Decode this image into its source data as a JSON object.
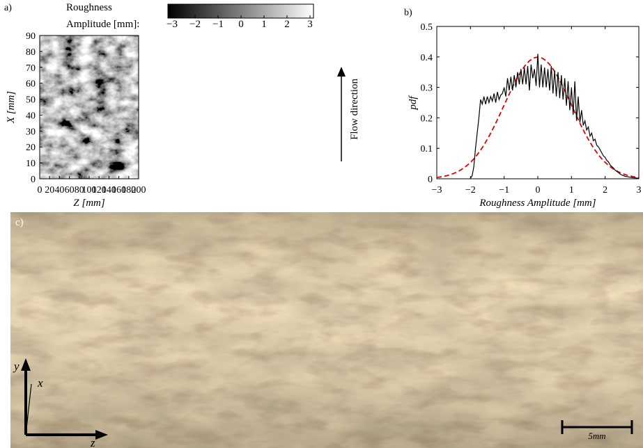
{
  "chart_data": [
    {
      "panel": "a)",
      "type": "heatmap",
      "colorbar": {
        "label_line1": "Roughness",
        "label_line2": "Amplitude [mm]:",
        "ticks": [
          "−3",
          "−2",
          "−1",
          "0",
          "1",
          "2",
          "3"
        ],
        "range": [
          -3,
          3
        ],
        "colors": [
          "#000000",
          "#ffffff"
        ]
      },
      "xlabel": "Z [mm]",
      "ylabel": "X [mm]",
      "xlim": [
        0,
        200
      ],
      "ylim": [
        0,
        90
      ],
      "xticks": [
        "0",
        "20",
        "40",
        "60",
        "80",
        "100",
        "120",
        "140",
        "160",
        "180",
        "200"
      ],
      "yticks": [
        "0",
        "10",
        "20",
        "30",
        "40",
        "50",
        "60",
        "70",
        "80",
        "90"
      ],
      "annotation": "Flow direction"
    },
    {
      "panel": "b)",
      "type": "line",
      "xlabel": "Roughness Amplitude [mm]",
      "ylabel": "pdf",
      "xlim": [
        -3,
        3
      ],
      "ylim": [
        0,
        0.5
      ],
      "xticks": [
        "−3",
        "−2",
        "−1",
        "0",
        "1",
        "2",
        "3"
      ],
      "yticks": [
        "0",
        "0.1",
        "0.2",
        "0.3",
        "0.4",
        "0.5"
      ],
      "series": [
        {
          "style": "solid",
          "color": "#000000",
          "x": [
            -2.0,
            -1.95,
            -1.9,
            -1.85,
            -1.8,
            -1.75,
            -1.7,
            -1.65,
            -1.6,
            -1.55,
            -1.5,
            -1.45,
            -1.4,
            -1.35,
            -1.3,
            -1.25,
            -1.2,
            -1.15,
            -1.1,
            -1.05,
            -1.0,
            -0.95,
            -0.9,
            -0.85,
            -0.8,
            -0.75,
            -0.7,
            -0.65,
            -0.6,
            -0.55,
            -0.5,
            -0.45,
            -0.4,
            -0.35,
            -0.3,
            -0.25,
            -0.2,
            -0.15,
            -0.1,
            -0.05,
            0.0,
            0.05,
            0.1,
            0.15,
            0.2,
            0.25,
            0.3,
            0.35,
            0.4,
            0.45,
            0.5,
            0.55,
            0.6,
            0.65,
            0.7,
            0.75,
            0.8,
            0.85,
            0.9,
            0.95,
            1.0,
            1.05,
            1.1,
            1.15,
            1.2,
            1.25,
            1.3,
            1.35,
            1.4,
            1.45,
            1.5,
            1.55,
            1.6,
            1.65,
            1.7,
            1.75,
            1.8,
            1.85,
            1.9,
            1.95,
            2.0,
            2.05,
            2.1,
            2.15,
            2.2,
            2.25,
            2.3,
            2.35,
            2.4,
            2.45,
            2.5,
            2.55,
            2.6,
            2.65,
            2.7,
            2.75,
            2.8,
            2.85,
            2.9,
            2.95,
            3.0
          ],
          "y": [
            0.002,
            0.01,
            0.04,
            0.1,
            0.15,
            0.2,
            0.26,
            0.245,
            0.27,
            0.245,
            0.27,
            0.25,
            0.27,
            0.255,
            0.28,
            0.25,
            0.285,
            0.26,
            0.275,
            0.28,
            0.3,
            0.27,
            0.33,
            0.29,
            0.335,
            0.29,
            0.34,
            0.3,
            0.35,
            0.31,
            0.36,
            0.31,
            0.365,
            0.31,
            0.37,
            0.29,
            0.375,
            0.33,
            0.36,
            0.305,
            0.41,
            0.3,
            0.375,
            0.3,
            0.365,
            0.3,
            0.36,
            0.29,
            0.37,
            0.28,
            0.355,
            0.27,
            0.35,
            0.265,
            0.34,
            0.26,
            0.33,
            0.24,
            0.32,
            0.225,
            0.3,
            0.21,
            0.32,
            0.19,
            0.27,
            0.185,
            0.225,
            0.175,
            0.19,
            0.16,
            0.17,
            0.14,
            0.15,
            0.125,
            0.13,
            0.11,
            0.105,
            0.095,
            0.085,
            0.075,
            0.07,
            0.06,
            0.055,
            0.045,
            0.04,
            0.035,
            0.028,
            0.024,
            0.02,
            0.015,
            0.012,
            0.01,
            0.008,
            0.007,
            0.006,
            0.005,
            0.004,
            0.003,
            0.003,
            0.002,
            0.002
          ]
        },
        {
          "style": "dashed",
          "color": "#e00000",
          "mean": 0.0,
          "sigma": 1.0
        }
      ]
    }
  ],
  "photo": {
    "panel": "c)",
    "axis_y": "y",
    "axis_x": "x",
    "axis_z": "z",
    "scalebar_label": "5mm"
  }
}
